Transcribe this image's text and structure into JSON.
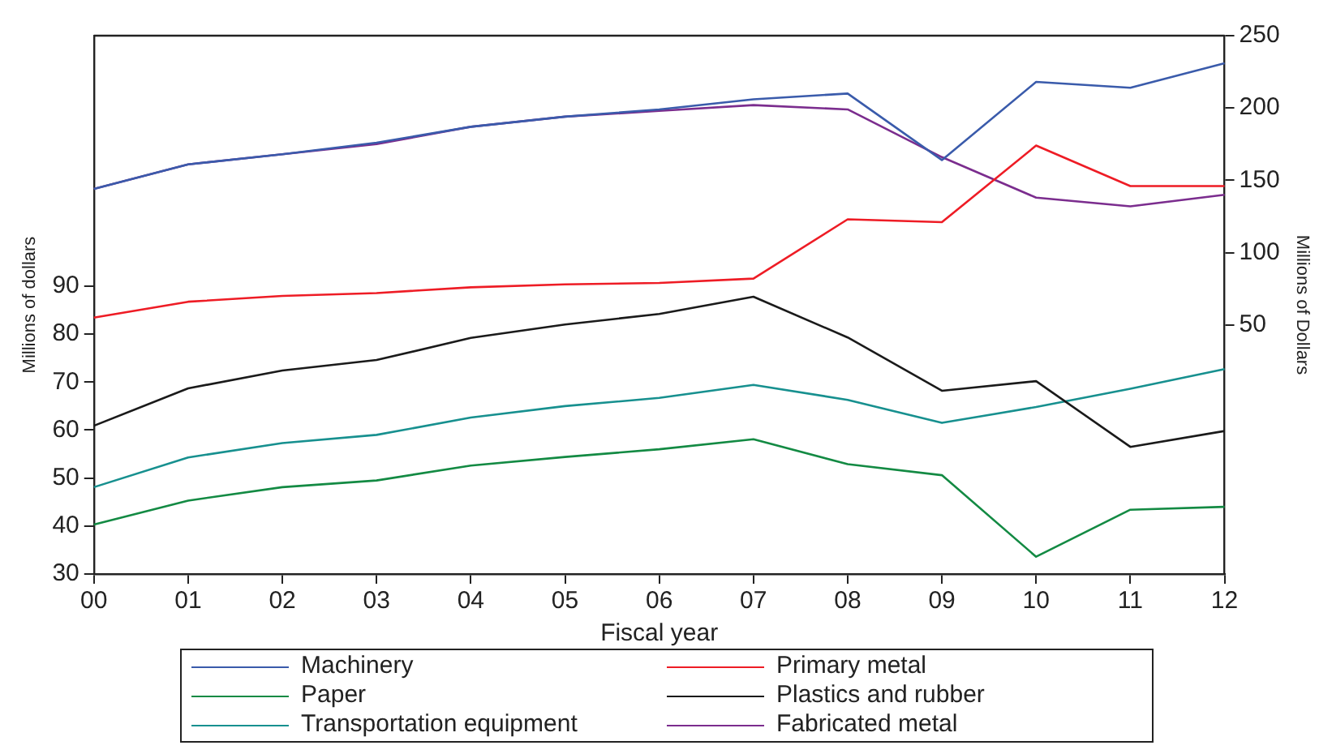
{
  "chart_data": {
    "type": "line",
    "xlabel": "Fiscal year",
    "ylabel": "Millions of dollars",
    "y2label": "Millions of Dollars",
    "categories": [
      "00",
      "01",
      "02",
      "03",
      "04",
      "05",
      "06",
      "07",
      "08",
      "09",
      "10",
      "11",
      "12"
    ],
    "series": [
      {
        "name": "Machinery",
        "color": "#3a5bab",
        "axis": "y2",
        "values": [
          144,
          161,
          168,
          176,
          187,
          194,
          199,
          206,
          210,
          164,
          218,
          214,
          231
        ]
      },
      {
        "name": "Primary metal",
        "color": "#ee1c25",
        "axis": "y2",
        "values": [
          55,
          66,
          70,
          72,
          76,
          78,
          79,
          82,
          123,
          121,
          174,
          146,
          146
        ]
      },
      {
        "name": "Paper",
        "color": "#138a43",
        "values": [
          40.3,
          45.3,
          48.1,
          49.5,
          52.6,
          54.4,
          56,
          58.1,
          52.9,
          50.6,
          33.6,
          43.4,
          44
        ]
      },
      {
        "name": "Plastics and rubber",
        "color": "#1a1a1a",
        "values": [
          60.9,
          68.7,
          72.4,
          74.6,
          79.2,
          82,
          84.2,
          87.8,
          79.3,
          68.2,
          70.2,
          56.5,
          59.8
        ]
      },
      {
        "name": "Transportation equipment",
        "color": "#17908f",
        "values": [
          48.1,
          54.3,
          57.3,
          59,
          62.6,
          65,
          66.7,
          69.4,
          66.3,
          61.5,
          64.8,
          68.6,
          72.7
        ]
      },
      {
        "name": "Fabricated metal",
        "color": "#7b2d8e",
        "axis": "y2",
        "values": [
          144,
          161,
          168,
          175,
          187,
          194,
          198,
          202,
          199,
          166,
          138,
          132,
          140
        ]
      }
    ],
    "ylim": [
      30,
      142.2
    ],
    "yticks": [
      30,
      40,
      50,
      60,
      70,
      80,
      90
    ],
    "y2lim": [
      -122.3,
      250
    ],
    "y2ticks": [
      50,
      100,
      150,
      200,
      250
    ],
    "grid": false,
    "legend": "bottom",
    "marker": "none",
    "line_style": "solid"
  }
}
